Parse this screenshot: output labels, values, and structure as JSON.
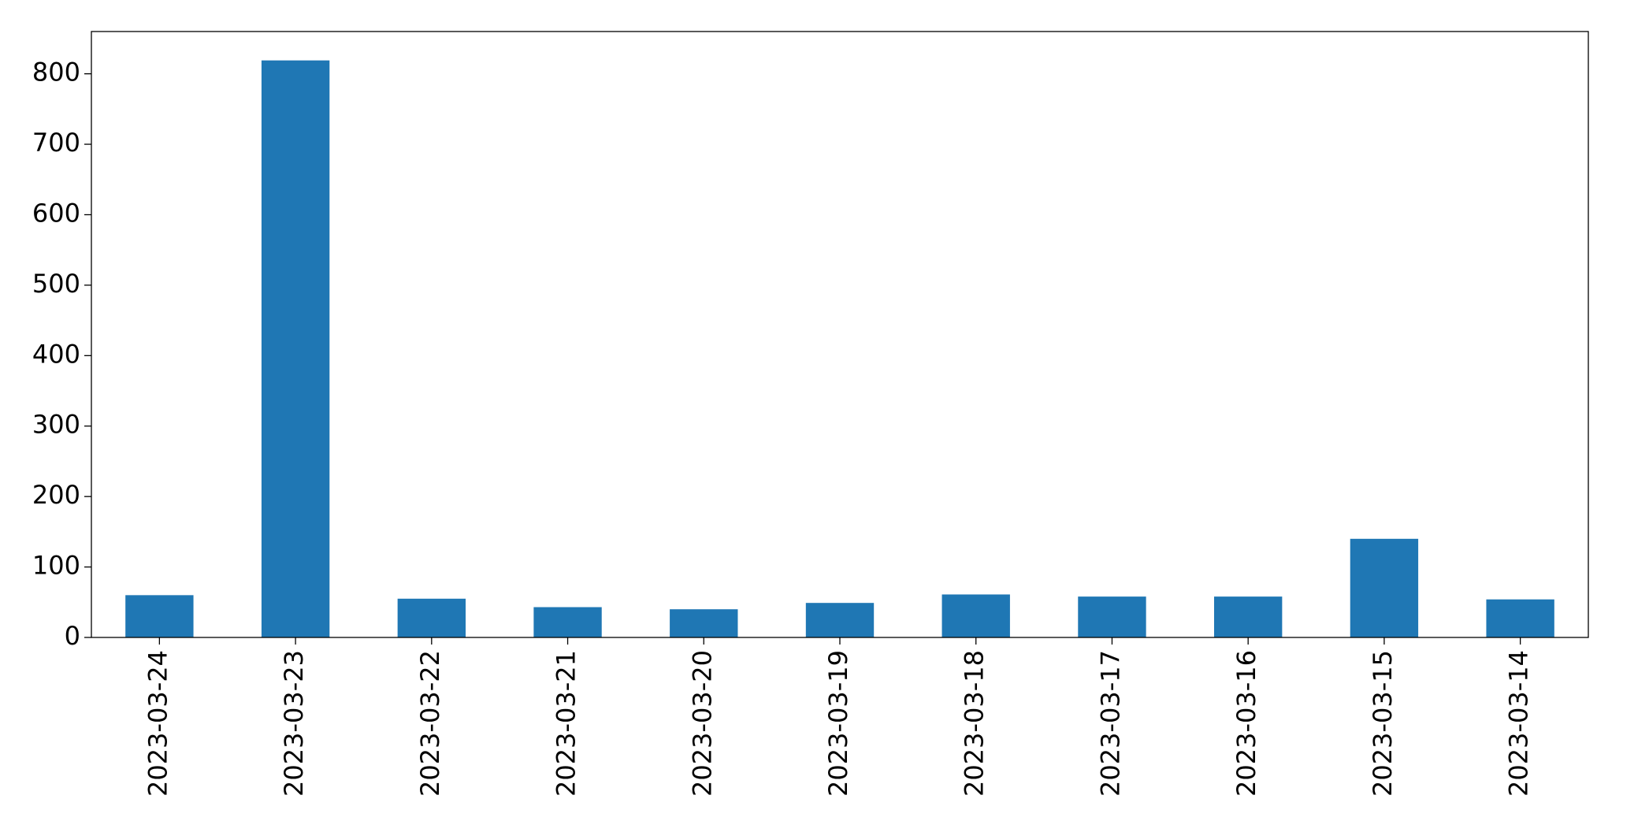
{
  "chart_data": {
    "type": "bar",
    "categories": [
      "2023-03-24",
      "2023-03-23",
      "2023-03-22",
      "2023-03-21",
      "2023-03-20",
      "2023-03-19",
      "2023-03-18",
      "2023-03-17",
      "2023-03-16",
      "2023-03-15",
      "2023-03-14"
    ],
    "values": [
      60,
      819,
      55,
      43,
      40,
      49,
      61,
      58,
      58,
      140,
      54
    ],
    "color": "#1f77b4",
    "ylim": [
      0,
      860
    ],
    "yticks": [
      0,
      100,
      200,
      300,
      400,
      500,
      600,
      700,
      800
    ],
    "grid": false
  }
}
